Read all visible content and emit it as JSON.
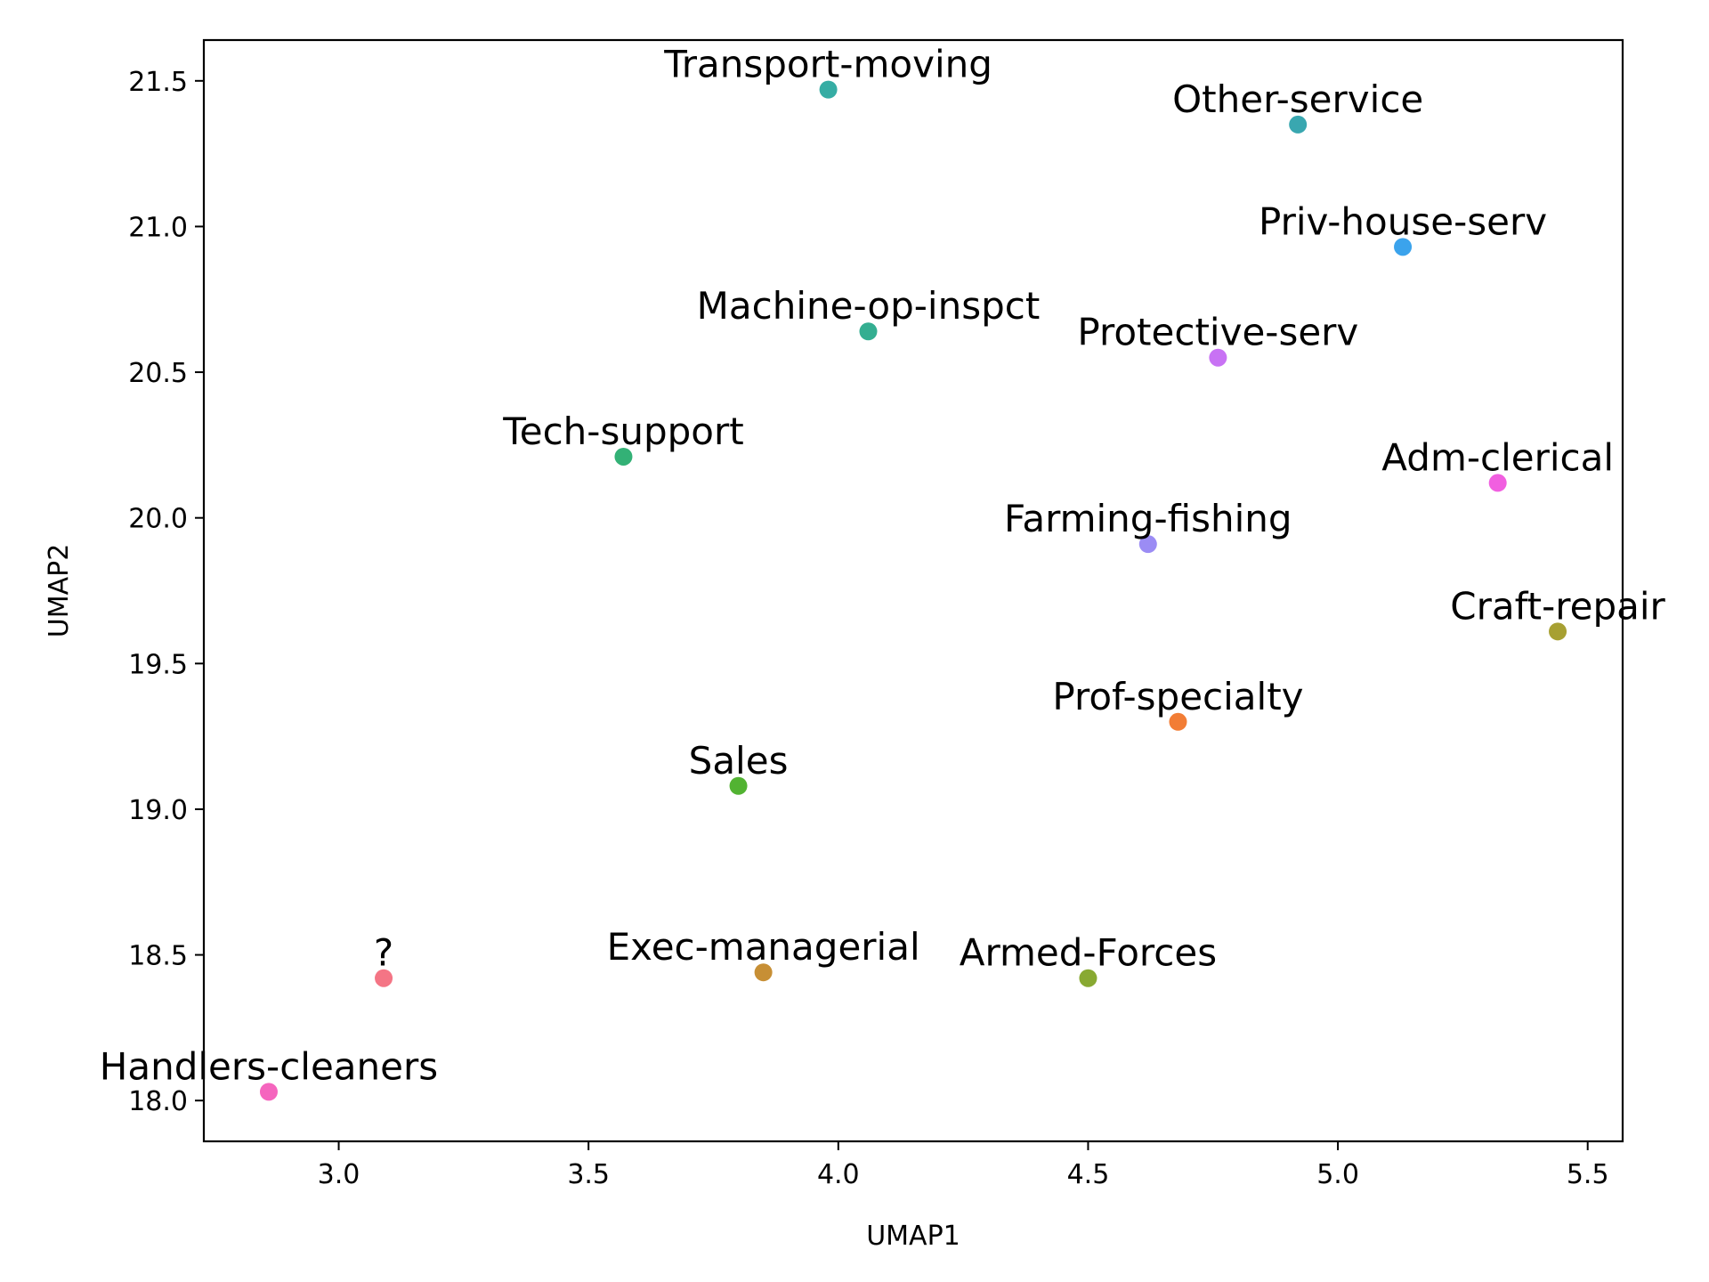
{
  "chart_data": {
    "type": "scatter",
    "xlabel": "UMAP1",
    "ylabel": "UMAP2",
    "xlim": [
      2.73,
      5.57
    ],
    "ylim": [
      17.86,
      21.64
    ],
    "xticks": [
      "3.0",
      "3.5",
      "4.0",
      "4.5",
      "5.0",
      "5.5"
    ],
    "yticks": [
      "18.0",
      "18.5",
      "19.0",
      "19.5",
      "20.0",
      "20.5",
      "21.0",
      "21.5"
    ],
    "grid": false,
    "points": [
      {
        "label": "Transport-moving",
        "x": 3.98,
        "y": 21.47,
        "color": "#36ADA4"
      },
      {
        "label": "Other-service",
        "x": 4.92,
        "y": 21.35,
        "color": "#39A7B0"
      },
      {
        "label": "Priv-house-serv",
        "x": 5.13,
        "y": 20.93,
        "color": "#3BA3EC"
      },
      {
        "label": "Machine-op-inspct",
        "x": 4.06,
        "y": 20.64,
        "color": "#34AE91"
      },
      {
        "label": "Protective-serv",
        "x": 4.76,
        "y": 20.55,
        "color": "#C872F4"
      },
      {
        "label": "Tech-support",
        "x": 3.57,
        "y": 20.21,
        "color": "#33B176"
      },
      {
        "label": "Adm-clerical",
        "x": 5.32,
        "y": 20.12,
        "color": "#F15FE0"
      },
      {
        "label": "Farming-fishing",
        "x": 4.62,
        "y": 19.91,
        "color": "#9B8CF4"
      },
      {
        "label": "Craft-repair",
        "x": 5.44,
        "y": 19.61,
        "color": "#A7A032"
      },
      {
        "label": "Prof-specialty",
        "x": 4.68,
        "y": 19.3,
        "color": "#F27D35"
      },
      {
        "label": "Sales",
        "x": 3.8,
        "y": 19.08,
        "color": "#52B332"
      },
      {
        "label": "Exec-managerial",
        "x": 3.85,
        "y": 18.44,
        "color": "#C78F35"
      },
      {
        "label": "Armed-Forces",
        "x": 4.5,
        "y": 18.42,
        "color": "#88A932"
      },
      {
        "label": "?",
        "x": 3.09,
        "y": 18.42,
        "color": "#F47585"
      },
      {
        "label": "Handlers-cleaners",
        "x": 2.86,
        "y": 18.03,
        "color": "#F565BE"
      }
    ]
  }
}
